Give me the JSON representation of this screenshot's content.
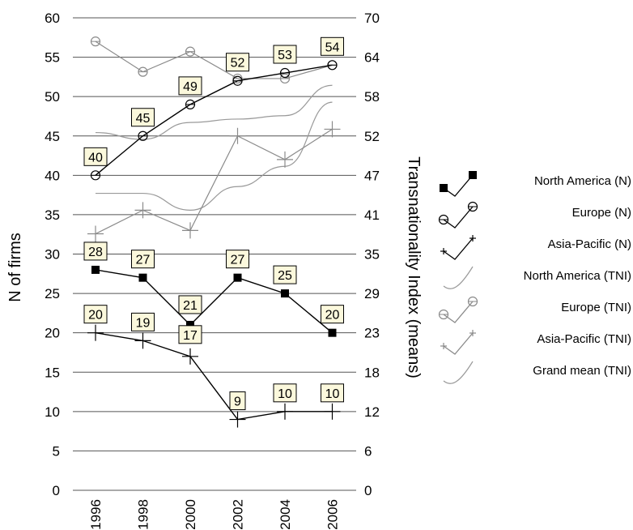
{
  "chart_data": {
    "type": "line",
    "x": [
      "1996",
      "1998",
      "2000",
      "2002",
      "2004",
      "2006"
    ],
    "ylabel_left": "N of firms",
    "ylabel_right": "Transnationality Index (means)",
    "yticks_left": [
      "0",
      "5",
      "10",
      "15",
      "20",
      "25",
      "30",
      "35",
      "40",
      "45",
      "50",
      "55",
      "60"
    ],
    "yticks_right": [
      "0",
      "6",
      "12",
      "18",
      "23",
      "29",
      "35",
      "41",
      "47",
      "52",
      "58",
      "64",
      "70"
    ],
    "ylim_left": [
      0,
      60
    ],
    "ylim_right": [
      0,
      70
    ],
    "grid": true,
    "legend_position": "right",
    "series": [
      {
        "name": "North America (N)",
        "axis": "left",
        "marker": "filled-square",
        "color": "#000000",
        "values": [
          28,
          27,
          21,
          27,
          25,
          20
        ],
        "labels": [
          "28",
          "27",
          "21",
          "27",
          "25",
          "20"
        ]
      },
      {
        "name": "Europe (N)",
        "axis": "left",
        "marker": "open-circle",
        "color": "#000000",
        "values": [
          40,
          45,
          49,
          52,
          53,
          54
        ],
        "labels": [
          "40",
          "45",
          "49",
          "52",
          "53",
          "54"
        ]
      },
      {
        "name": "Asia-Pacific (N)",
        "axis": "left",
        "marker": "plus",
        "color": "#000000",
        "values": [
          20,
          19,
          17,
          9,
          10,
          10
        ],
        "labels": [
          "20",
          "19",
          "17",
          "9",
          "10",
          "10"
        ]
      },
      {
        "name": "North America (TNI)",
        "axis": "right",
        "marker": "none",
        "color": "#999999",
        "values": [
          44,
          44,
          41.5,
          45,
          48,
          57.5
        ]
      },
      {
        "name": "Europe (TNI)",
        "axis": "right",
        "marker": "open-circle",
        "color": "#8a8a8a",
        "values": [
          66.5,
          62,
          65,
          61,
          61,
          63
        ]
      },
      {
        "name": "Asia-Pacific (TNI)",
        "axis": "right",
        "marker": "plus",
        "color": "#8a8a8a",
        "values": [
          38,
          41.5,
          38.5,
          52.5,
          49,
          53.5
        ]
      },
      {
        "name": "Grand mean (TNI)",
        "axis": "right",
        "marker": "none",
        "color": "#999999",
        "values": [
          53,
          52,
          54.5,
          55,
          55.5,
          60
        ]
      }
    ]
  }
}
